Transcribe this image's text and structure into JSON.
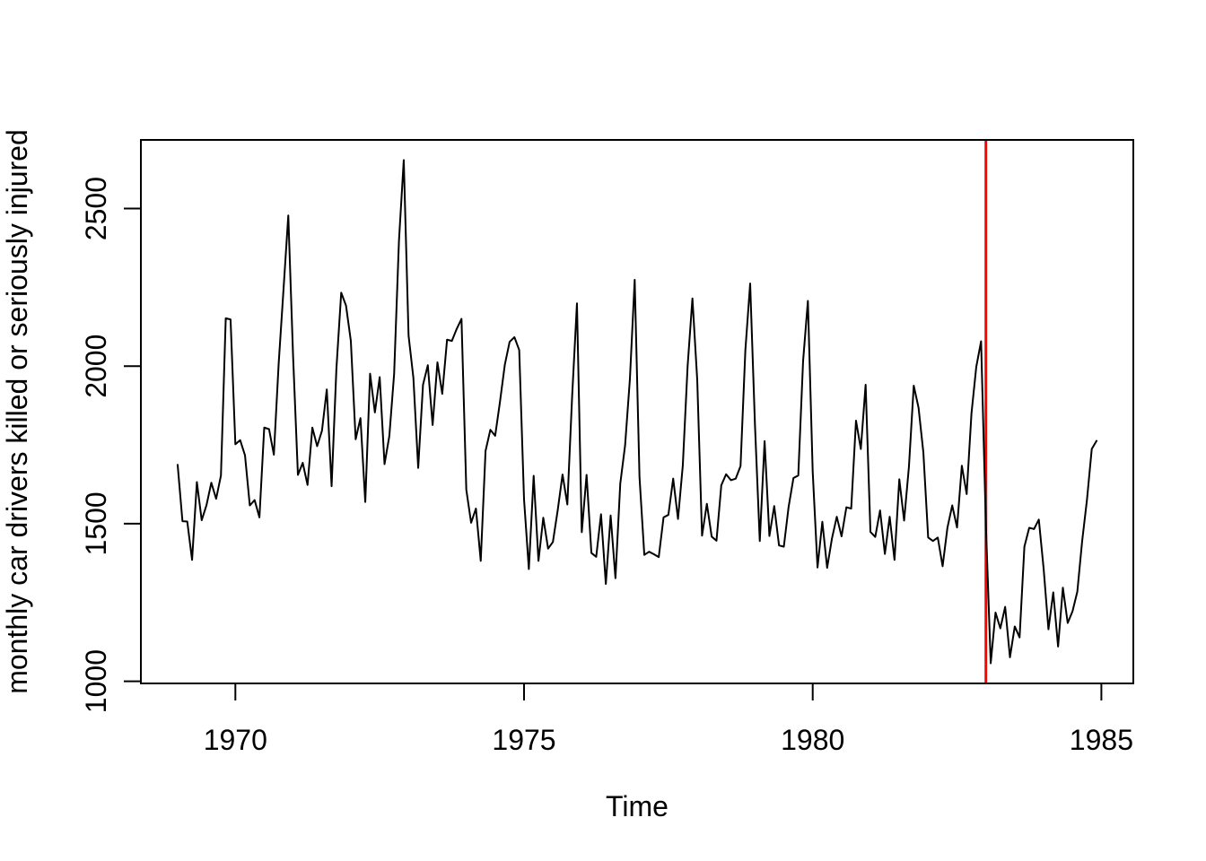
{
  "chart_data": {
    "type": "line",
    "title": "",
    "xlabel": "Time",
    "ylabel": "monthly car drivers killed or seriously injured",
    "x_axis": {
      "tick_values": [
        1970,
        1975,
        1980,
        1985
      ],
      "tick_labels": [
        "1970",
        "1975",
        "1980",
        "1985"
      ]
    },
    "y_axis": {
      "tick_values": [
        1000,
        1500,
        2000,
        2500
      ],
      "tick_labels": [
        "1000",
        "1500",
        "2000",
        "2500"
      ]
    },
    "xlim": [
      1968.3633,
      1985.5533
    ],
    "ylim": [
      993.12,
      2717.88
    ],
    "grid": false,
    "legend": "none",
    "line_color": "#000000",
    "background_color": "#ffffff",
    "reference_line": {
      "orientation": "vertical",
      "x": 1983,
      "color": "#FF0000"
    },
    "series": [
      {
        "name": "monthly car drivers killed or seriously injured",
        "x_start": 1969,
        "frequency": 12,
        "x_end": 1984.9167,
        "values": [
          1687,
          1508,
          1507,
          1385,
          1632,
          1511,
          1559,
          1630,
          1579,
          1653,
          2152,
          2148,
          1752,
          1765,
          1717,
          1558,
          1575,
          1520,
          1805,
          1800,
          1719,
          2008,
          2242,
          2478,
          2030,
          1655,
          1693,
          1623,
          1805,
          1746,
          1795,
          1926,
          1619,
          1992,
          2233,
          2192,
          2080,
          1768,
          1835,
          1569,
          1976,
          1853,
          1965,
          1689,
          1778,
          1976,
          2397,
          2654,
          2097,
          1963,
          1677,
          1941,
          2003,
          1813,
          2012,
          1912,
          2084,
          2080,
          2118,
          2150,
          1608,
          1503,
          1548,
          1382,
          1731,
          1798,
          1779,
          1887,
          2004,
          2077,
          2092,
          2051,
          1577,
          1356,
          1652,
          1382,
          1519,
          1421,
          1442,
          1543,
          1656,
          1561,
          1905,
          2199,
          1473,
          1655,
          1407,
          1395,
          1530,
          1309,
          1526,
          1327,
          1627,
          1748,
          1958,
          2274,
          1648,
          1401,
          1411,
          1403,
          1394,
          1520,
          1528,
          1643,
          1515,
          1685,
          2000,
          2215,
          1956,
          1462,
          1563,
          1459,
          1446,
          1622,
          1657,
          1638,
          1643,
          1683,
          2050,
          2262,
          1813,
          1445,
          1762,
          1461,
          1556,
          1431,
          1427,
          1554,
          1645,
          1653,
          2016,
          2207,
          1665,
          1361,
          1506,
          1360,
          1453,
          1522,
          1460,
          1552,
          1548,
          1827,
          1737,
          1941,
          1474,
          1458,
          1542,
          1404,
          1522,
          1385,
          1641,
          1510,
          1681,
          1938,
          1868,
          1726,
          1456,
          1445,
          1456,
          1365,
          1487,
          1558,
          1488,
          1684,
          1594,
          1850,
          1998,
          2079,
          1494,
          1057,
          1218,
          1168,
          1236,
          1076,
          1174,
          1139,
          1427,
          1487,
          1483,
          1513,
          1357,
          1165,
          1282,
          1110,
          1297,
          1185,
          1222,
          1284,
          1444,
          1575,
          1737,
          1763
        ]
      }
    ]
  }
}
